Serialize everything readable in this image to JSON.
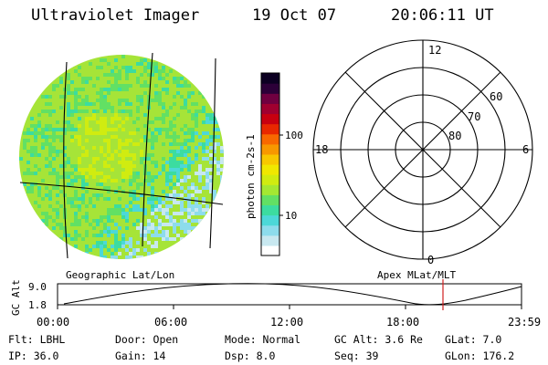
{
  "header": {
    "title": "Ultraviolet Imager",
    "date": "19 Oct 07",
    "time": "20:06:11 UT"
  },
  "colorbar": {
    "unit_label": "photon cm-2s-1",
    "ticks": [
      "100",
      "10"
    ],
    "colors": [
      "#ffffff",
      "#c8e8f0",
      "#8ddcec",
      "#4cd8d8",
      "#3cdca0",
      "#62e064",
      "#a4e832",
      "#d0ec10",
      "#f0e800",
      "#f8c800",
      "#f89800",
      "#f86800",
      "#e82800",
      "#c80010",
      "#a00030",
      "#700040",
      "#2c0038",
      "#0c0022"
    ]
  },
  "polar_plot": {
    "mlt_labels": [
      "12",
      "18",
      "6",
      "0"
    ],
    "lat_labels": [
      "60",
      "70",
      "80"
    ]
  },
  "altitude_panel": {
    "axis_label": "GC Alt",
    "y_ticks": [
      "9.0",
      "1.8"
    ],
    "left_caption": "Geographic Lat/Lon",
    "right_caption": "Apex MLat/MLT",
    "x_ticks": [
      "00:00",
      "06:00",
      "12:00",
      "18:00",
      "23:59"
    ],
    "marker_color": "#d02020"
  },
  "info": {
    "row1": [
      "Flt: LBHL",
      "Door: Open",
      "Mode: Normal",
      "GC Alt: 3.6 Re",
      "GLat:  7.0"
    ],
    "row2": [
      "IP: 36.0",
      "Gain: 14",
      "Dsp:   8.0",
      "Seq: 39",
      "GLon: 176.2"
    ]
  }
}
